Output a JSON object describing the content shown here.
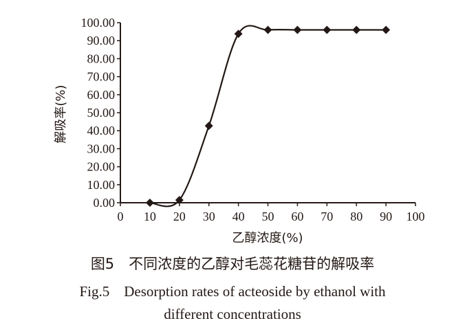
{
  "chart_data": {
    "type": "line",
    "title": "",
    "xlabel": "乙醇浓度(%)",
    "ylabel": "解吸率(%)",
    "x": [
      10,
      20,
      30,
      40,
      50,
      60,
      70,
      80,
      90
    ],
    "series": [
      {
        "name": "解吸率",
        "values": [
          0.0,
          1.5,
          42.7,
          93.8,
          96.0,
          96.0,
          96.0,
          96.0,
          96.0
        ],
        "marker": "diamond",
        "smooth": true
      }
    ],
    "xlim": [
      0,
      100
    ],
    "ylim": [
      0,
      100
    ],
    "xticks": [
      "0",
      "10",
      "20",
      "30",
      "40",
      "50",
      "60",
      "70",
      "80",
      "90",
      "100"
    ],
    "yticks": [
      "0.00",
      "10.00",
      "20.00",
      "30.00",
      "40.00",
      "50.00",
      "60.00",
      "70.00",
      "80.00",
      "90.00",
      "100.00"
    ],
    "grid": false,
    "legend": null
  },
  "caption": {
    "cn": "图5　不同浓度的乙醇对毛蕊花糖苷的解吸率",
    "en_line1": "Fig.5　Desorption rates of acteoside by ethanol with",
    "en_line2": "different concentrations"
  },
  "colors": {
    "ink": "#231815",
    "background": "#ffffff"
  }
}
